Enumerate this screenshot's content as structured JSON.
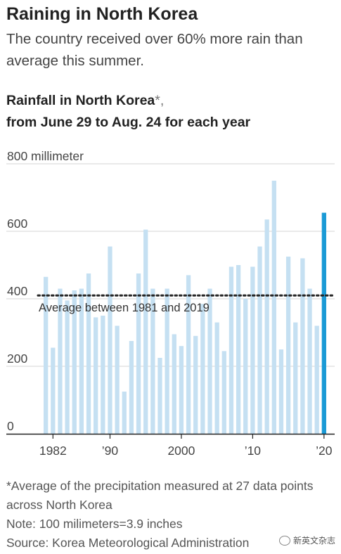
{
  "headline": "Raining in North Korea",
  "dek": "The country received over 60% more rain than average this summer.",
  "notes": {
    "footnote": "*Average of the precipitation measured at 27 data points across North Korea",
    "note": "Note: 100 milimeters=3.9 inches",
    "source": "Source: Korea Meteorological Administration"
  },
  "watermark": {
    "text": "新英文杂志",
    "icon": "wechat-icon"
  },
  "chart_data": {
    "type": "bar",
    "title_main": "Rainfall in North Korea",
    "title_star": "*,",
    "title_line2": "from June 29 to Aug. 24 for each year",
    "ytick_top_label": "800 millimeter",
    "yticks": [
      {
        "value": 0,
        "label": "0"
      },
      {
        "value": 200,
        "label": "200"
      },
      {
        "value": 400,
        "label": "400"
      },
      {
        "value": 600,
        "label": "600"
      },
      {
        "value": 800,
        "label": "800 millimeter"
      }
    ],
    "ylim": [
      0,
      800
    ],
    "xticks": [
      {
        "value": 1982,
        "label": "1982"
      },
      {
        "value": 1990,
        "label": "’90"
      },
      {
        "value": 2000,
        "label": "2000"
      },
      {
        "value": 2010,
        "label": "’10"
      },
      {
        "value": 2020,
        "label": "’20"
      }
    ],
    "xlim": [
      1979.8,
      2021.2
    ],
    "x": [
      1981,
      1982,
      1983,
      1984,
      1985,
      1986,
      1987,
      1988,
      1989,
      1990,
      1991,
      1992,
      1993,
      1994,
      1995,
      1996,
      1997,
      1998,
      1999,
      2000,
      2001,
      2002,
      2003,
      2004,
      2005,
      2006,
      2007,
      2008,
      2009,
      2010,
      2011,
      2012,
      2013,
      2014,
      2015,
      2016,
      2017,
      2018,
      2019,
      2020
    ],
    "values": [
      465,
      255,
      430,
      395,
      425,
      430,
      475,
      345,
      350,
      555,
      320,
      125,
      275,
      475,
      605,
      430,
      225,
      430,
      295,
      260,
      470,
      290,
      385,
      430,
      330,
      245,
      495,
      500,
      400,
      495,
      555,
      635,
      750,
      250,
      525,
      330,
      520,
      430,
      320,
      655
    ],
    "highlight": {
      "x": 2020,
      "color": "#1a9ad6"
    },
    "bar_color": "#c5e0f2",
    "average": {
      "value": 410,
      "label": "Average between 1981 and 2019"
    },
    "grid": true
  }
}
